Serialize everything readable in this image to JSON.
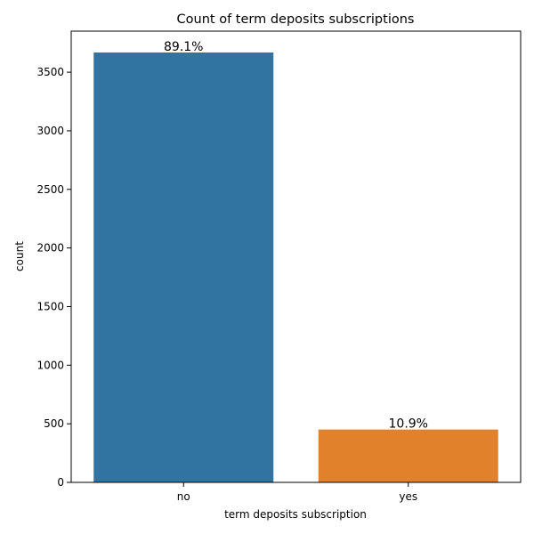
{
  "chart_data": {
    "type": "bar",
    "title": "Count of term deposits subscriptions",
    "xlabel": "term deposits subscription",
    "ylabel": "count",
    "categories": [
      "no",
      "yes"
    ],
    "values": [
      3668,
      451
    ],
    "data_labels": [
      "89.1%",
      "10.9%"
    ],
    "colors": [
      "#3274a1",
      "#e1812c"
    ],
    "ylim": [
      0,
      3850
    ],
    "yticks": [
      0,
      500,
      1000,
      1500,
      2000,
      2500,
      3000,
      3500
    ],
    "ytick_labels": [
      "0",
      "500",
      "1000",
      "1500",
      "2000",
      "2500",
      "3000",
      "3500"
    ],
    "grid": false,
    "legend": "none"
  }
}
